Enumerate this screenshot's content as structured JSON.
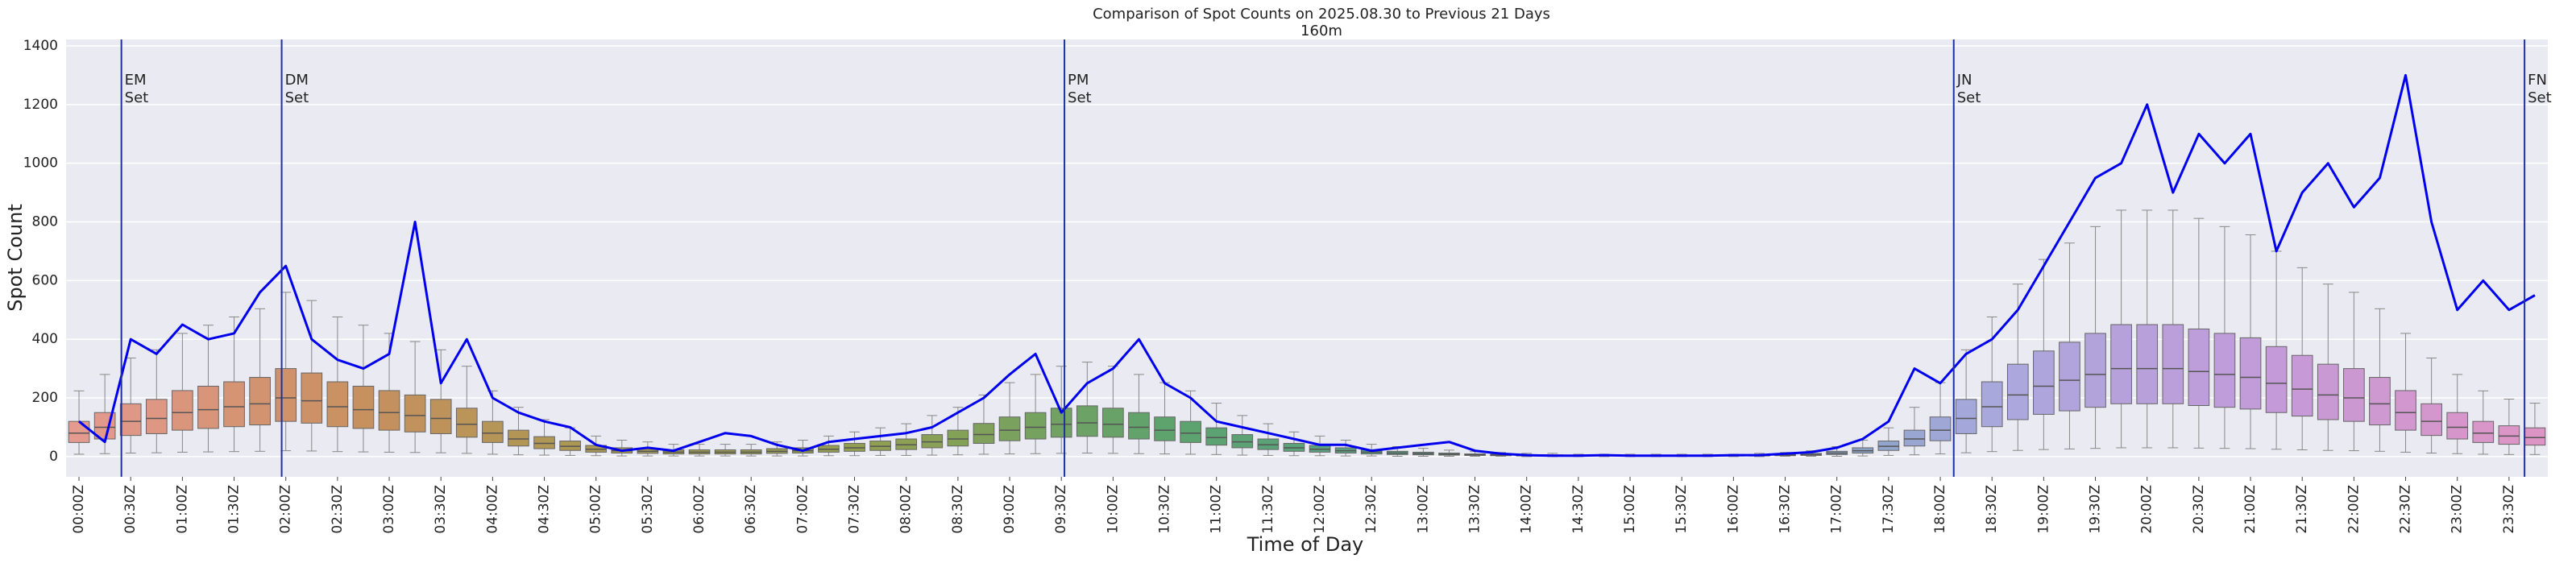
{
  "chart_data": {
    "type": "box_line",
    "title": "Comparison of Spot Counts on 2025.08.30 to Previous 21 Days",
    "subtitle": "160m",
    "xlabel": "Time of Day",
    "ylabel": "Spot Count",
    "categories": [
      "00:00Z",
      null,
      "00:30Z",
      null,
      "01:00Z",
      null,
      "01:30Z",
      null,
      "02:00Z",
      null,
      "02:30Z",
      null,
      "03:00Z",
      null,
      "03:30Z",
      null,
      "04:00Z",
      null,
      "04:30Z",
      null,
      "05:00Z",
      null,
      "05:30Z",
      null,
      "06:00Z",
      null,
      "06:30Z",
      null,
      "07:00Z",
      null,
      "07:30Z",
      null,
      "08:00Z",
      null,
      "08:30Z",
      null,
      "09:00Z",
      null,
      "09:30Z",
      null,
      "10:00Z",
      null,
      "10:30Z",
      null,
      "11:00Z",
      null,
      "11:30Z",
      null,
      "12:00Z",
      null,
      "12:30Z",
      null,
      "13:00Z",
      null,
      "13:30Z",
      null,
      "14:00Z",
      null,
      "14:30Z",
      null,
      "15:00Z",
      null,
      "15:30Z",
      null,
      "16:00Z",
      null,
      "16:30Z",
      null,
      "17:00Z",
      null,
      "17:30Z",
      null,
      "18:00Z",
      null,
      "18:30Z",
      null,
      "19:00Z",
      null,
      "19:30Z",
      null,
      "20:00Z",
      null,
      "20:30Z",
      null,
      "21:00Z",
      null,
      "21:30Z",
      null,
      "22:00Z",
      null,
      "22:30Z",
      null,
      "23:00Z",
      null,
      "23:30Z",
      null
    ],
    "boxes": {
      "palette": [
        "#e59a8f",
        "#c99060",
        "#a59a50",
        "#8fa052",
        "#5da36e",
        "#5aa08a",
        "#6aa0b0",
        "#a9a8dd",
        "#c39ad9",
        "#dd95c5"
      ],
      "whislo": [
        8,
        10,
        12,
        13,
        15,
        16,
        17,
        18,
        20,
        19,
        17,
        16,
        15,
        14,
        13,
        11,
        8,
        6,
        5,
        4,
        3,
        2,
        2,
        2,
        2,
        2,
        2,
        2,
        2,
        3,
        3,
        4,
        4,
        5,
        6,
        8,
        9,
        10,
        11,
        12,
        11,
        10,
        9,
        8,
        7,
        5,
        4,
        3,
        3,
        2,
        2,
        1,
        1,
        1,
        1,
        1,
        0,
        0,
        0,
        0,
        0,
        0,
        0,
        0,
        0,
        0,
        1,
        1,
        1,
        2,
        4,
        6,
        9,
        13,
        17,
        21,
        24,
        26,
        28,
        30,
        30,
        30,
        29,
        28,
        27,
        25,
        23,
        21,
        20,
        18,
        15,
        12,
        10,
        8,
        7,
        7
      ],
      "q1": [
        48,
        60,
        72,
        78,
        90,
        96,
        102,
        108,
        120,
        114,
        102,
        96,
        90,
        84,
        78,
        66,
        48,
        36,
        27,
        21,
        15,
        12,
        11,
        9,
        9,
        9,
        9,
        11,
        12,
        15,
        18,
        21,
        24,
        30,
        36,
        45,
        54,
        60,
        66,
        69,
        66,
        60,
        54,
        48,
        39,
        30,
        24,
        18,
        15,
        12,
        9,
        7,
        6,
        5,
        4,
        3,
        2,
        2,
        2,
        2,
        2,
        2,
        2,
        2,
        2,
        2,
        3,
        4,
        7,
        12,
        21,
        36,
        54,
        78,
        102,
        126,
        144,
        156,
        168,
        180,
        180,
        180,
        174,
        168,
        162,
        150,
        138,
        126,
        120,
        108,
        90,
        72,
        60,
        48,
        42,
        39
      ],
      "median": [
        80,
        100,
        120,
        130,
        150,
        160,
        170,
        180,
        200,
        190,
        170,
        160,
        150,
        140,
        130,
        110,
        80,
        60,
        45,
        35,
        25,
        20,
        18,
        15,
        15,
        15,
        15,
        18,
        20,
        25,
        30,
        35,
        40,
        50,
        60,
        75,
        90,
        100,
        110,
        115,
        110,
        100,
        90,
        80,
        65,
        50,
        40,
        30,
        25,
        20,
        15,
        12,
        10,
        8,
        6,
        5,
        4,
        4,
        3,
        3,
        3,
        3,
        3,
        3,
        3,
        4,
        5,
        7,
        12,
        20,
        35,
        60,
        90,
        130,
        170,
        210,
        240,
        260,
        280,
        300,
        300,
        300,
        290,
        280,
        270,
        250,
        230,
        210,
        200,
        180,
        150,
        120,
        100,
        80,
        70,
        65
      ],
      "q3": [
        120,
        150,
        180,
        195,
        225,
        240,
        255,
        270,
        300,
        285,
        255,
        240,
        225,
        210,
        195,
        165,
        120,
        90,
        68,
        53,
        38,
        30,
        27,
        23,
        23,
        23,
        23,
        27,
        30,
        38,
        45,
        53,
        60,
        75,
        90,
        113,
        135,
        150,
        165,
        173,
        165,
        150,
        135,
        120,
        98,
        75,
        60,
        45,
        38,
        30,
        23,
        18,
        15,
        12,
        9,
        8,
        6,
        6,
        5,
        5,
        5,
        5,
        5,
        5,
        5,
        6,
        8,
        11,
        18,
        30,
        53,
        90,
        135,
        195,
        255,
        315,
        360,
        390,
        420,
        450,
        450,
        450,
        435,
        420,
        405,
        375,
        345,
        315,
        300,
        270,
        225,
        180,
        150,
        120,
        105,
        98
      ],
      "whishi": [
        224,
        280,
        336,
        364,
        420,
        448,
        476,
        504,
        560,
        532,
        476,
        448,
        420,
        392,
        364,
        308,
        224,
        168,
        126,
        98,
        70,
        56,
        50,
        42,
        42,
        42,
        42,
        50,
        56,
        70,
        84,
        98,
        112,
        140,
        168,
        210,
        252,
        280,
        308,
        322,
        308,
        280,
        252,
        224,
        182,
        140,
        112,
        84,
        70,
        56,
        42,
        34,
        28,
        22,
        17,
        14,
        11,
        11,
        8,
        8,
        8,
        8,
        8,
        8,
        8,
        11,
        14,
        20,
        34,
        56,
        98,
        168,
        252,
        364,
        476,
        588,
        672,
        728,
        784,
        840,
        840,
        840,
        812,
        784,
        756,
        700,
        644,
        588,
        560,
        504,
        420,
        336,
        280,
        224,
        196,
        182
      ]
    },
    "line": {
      "color": "#0000ee",
      "values": [
        120,
        50,
        400,
        350,
        450,
        400,
        420,
        560,
        650,
        400,
        330,
        300,
        350,
        800,
        250,
        400,
        200,
        150,
        120,
        100,
        40,
        20,
        30,
        20,
        50,
        80,
        70,
        40,
        20,
        50,
        60,
        70,
        80,
        100,
        150,
        200,
        280,
        350,
        150,
        250,
        300,
        400,
        250,
        200,
        120,
        100,
        80,
        60,
        40,
        40,
        20,
        30,
        40,
        50,
        20,
        10,
        5,
        3,
        3,
        5,
        3,
        3,
        3,
        3,
        5,
        5,
        10,
        15,
        30,
        60,
        120,
        300,
        250,
        350,
        400,
        500,
        650,
        800,
        950,
        1000,
        1200,
        900,
        1100,
        1000,
        1100,
        700,
        900,
        1000,
        850,
        950,
        1300,
        800,
        500,
        600,
        500,
        550
      ]
    },
    "annotations": [
      {
        "x": 0.41,
        "lines": [
          "EM",
          "Set"
        ]
      },
      {
        "x": 1.96,
        "lines": [
          "DM",
          "Set"
        ]
      },
      {
        "x": 9.53,
        "lines": [
          "PM",
          "Set"
        ]
      },
      {
        "x": 18.13,
        "lines": [
          "JN",
          "Set"
        ]
      },
      {
        "x": 23.65,
        "lines": [
          "FN",
          "Set"
        ]
      }
    ],
    "annotation_color": "#2030a0",
    "ylim": [
      -69,
      1422
    ],
    "yticks": [
      0,
      200,
      400,
      600,
      800,
      1000,
      1200,
      1400
    ],
    "grid": true
  }
}
